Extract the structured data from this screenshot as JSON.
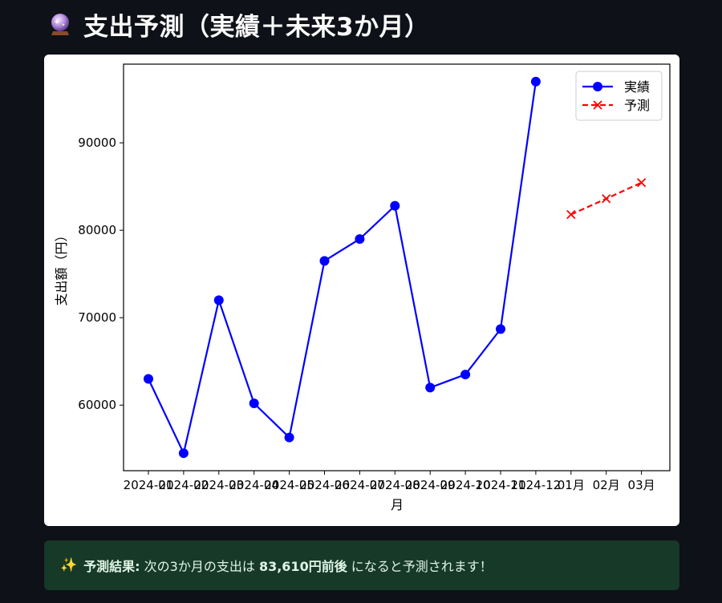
{
  "header": {
    "icon": "crystal-ball-icon",
    "title": "支出予測（実績＋未来3か月）"
  },
  "chart_data": {
    "type": "line",
    "x_categories": [
      "2024-01",
      "2024-02",
      "2024-03",
      "2024-04",
      "2024-05",
      "2024-06",
      "2024-07",
      "2024-08",
      "2024-09",
      "2024-10",
      "2024-11",
      "2024-12",
      "01月",
      "02月",
      "03月"
    ],
    "series": [
      {
        "name": "実績",
        "color": "#0000ff",
        "style": "solid",
        "marker": "circle",
        "x_index": [
          0,
          1,
          2,
          3,
          4,
          5,
          6,
          7,
          8,
          9,
          10,
          11
        ],
        "values": [
          63000,
          54500,
          72000,
          60200,
          56300,
          76500,
          79000,
          82800,
          62000,
          63500,
          68700,
          97000
        ]
      },
      {
        "name": "予測",
        "color": "#ff0000",
        "style": "dashed",
        "marker": "x",
        "x_index": [
          12,
          13,
          14
        ],
        "values": [
          81800,
          83610,
          85450
        ]
      }
    ],
    "y_ticks": [
      60000,
      70000,
      80000,
      90000
    ],
    "ylim": [
      52500,
      99000
    ],
    "xlabel": "月",
    "ylabel": "支出額（円）",
    "legend_position": "top-right",
    "grid": false
  },
  "result": {
    "icon": "sparkles-icon",
    "prefix": "予測結果:",
    "text_before": "次の3か月の支出は",
    "amount": "83,610円前後",
    "text_after": "になると予測されます！"
  }
}
